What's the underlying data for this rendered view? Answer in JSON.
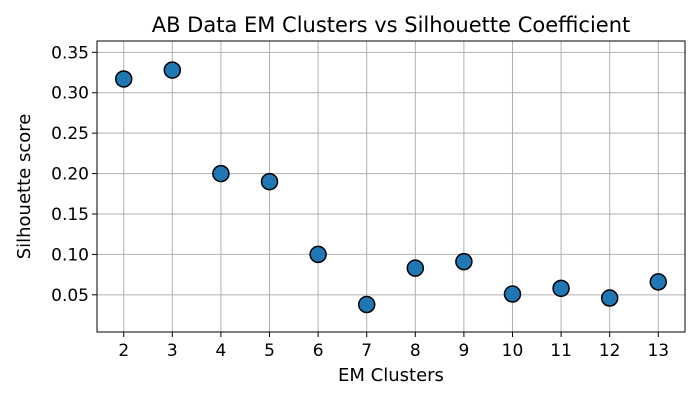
{
  "chart_data": {
    "type": "scatter",
    "title": "AB Data EM Clusters vs Silhouette Coefficient",
    "xlabel": "EM Clusters",
    "ylabel": "Silhouette score",
    "x": [
      2,
      3,
      4,
      5,
      6,
      7,
      8,
      9,
      10,
      11,
      12,
      13
    ],
    "y": [
      0.317,
      0.328,
      0.2,
      0.19,
      0.1,
      0.038,
      0.083,
      0.091,
      0.051,
      0.058,
      0.046,
      0.066
    ],
    "xticks": [
      "2",
      "3",
      "4",
      "5",
      "6",
      "7",
      "8",
      "9",
      "10",
      "11",
      "12",
      "13"
    ],
    "yticks": [
      "0.05",
      "0.10",
      "0.15",
      "0.20",
      "0.25",
      "0.30",
      "0.35"
    ],
    "ytick_values": [
      0.05,
      0.1,
      0.15,
      0.2,
      0.25,
      0.3,
      0.35
    ],
    "xlim": [
      1.45,
      13.55
    ],
    "ylim": [
      0.004,
      0.364
    ],
    "grid": true,
    "marker_color": "#1f77b4",
    "marker_edge_color": "#000000"
  }
}
